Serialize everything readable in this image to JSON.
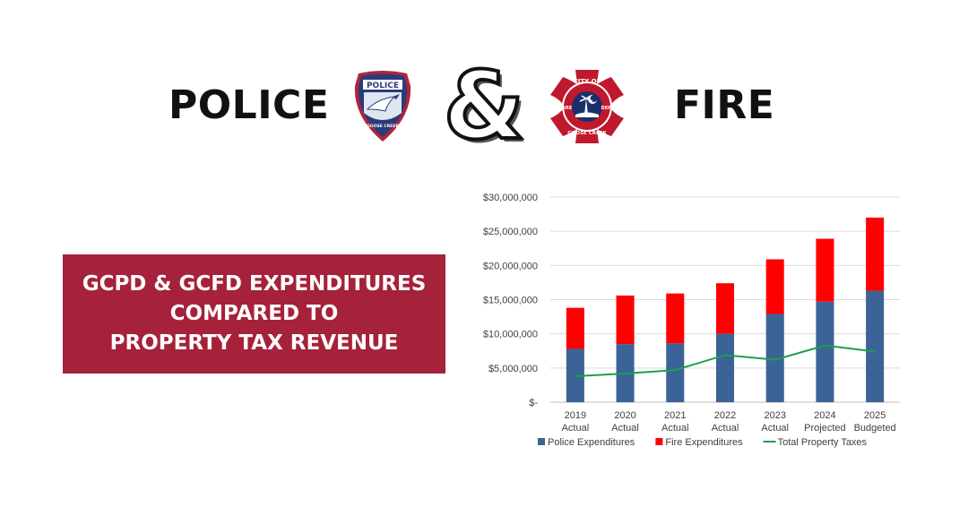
{
  "header": {
    "left_word": "POLICE",
    "right_word": "FIRE",
    "ampersand": "&",
    "police_badge": {
      "icon": "police-badge-icon",
      "top_text": "POLICE",
      "bottom_text": "GOOSE CREEK",
      "colors": {
        "body": "#2a3b7a",
        "trim": "#b0243a",
        "field": "#dfe6f2"
      }
    },
    "fire_badge": {
      "icon": "fire-department-cross-icon",
      "top_text": "CITY OF",
      "left_text": "FIRE",
      "right_text": "DEPT",
      "bottom_text": "GOOSE CREEK",
      "colors": {
        "cross": "#c0182d",
        "ring": "#ffffff",
        "center": "#1d2f6b"
      }
    }
  },
  "title_box": {
    "lines": [
      "GCPD & GCFD EXPENDITURES",
      "COMPARED TO",
      "PROPERTY TAX REVENUE"
    ],
    "background": "#a6213a"
  },
  "chart_data": {
    "type": "bar",
    "stacked": true,
    "categories": [
      [
        "2019",
        "Actual"
      ],
      [
        "2020",
        "Actual"
      ],
      [
        "2021",
        "Actual"
      ],
      [
        "2022",
        "Actual"
      ],
      [
        "2023",
        "Actual"
      ],
      [
        "2024",
        "Projected"
      ],
      [
        "2025",
        "Budgeted"
      ]
    ],
    "series": [
      {
        "name": "Police Expenditures",
        "kind": "bar",
        "color": "#3b6397",
        "values": [
          7800000,
          8500000,
          8600000,
          10000000,
          12900000,
          14700000,
          16300000
        ]
      },
      {
        "name": "Fire Expenditures",
        "kind": "bar",
        "color": "#ff0000",
        "values": [
          6000000,
          7100000,
          7300000,
          7400000,
          8000000,
          9200000,
          10700000
        ]
      },
      {
        "name": "Total Property Taxes",
        "kind": "line",
        "color": "#1aa04a",
        "values": [
          3800000,
          4200000,
          4700000,
          6900000,
          6200000,
          8300000,
          7400000
        ]
      }
    ],
    "yticks": [
      "$-",
      "$5,000,000",
      "$10,000,000",
      "$15,000,000",
      "$20,000,000",
      "$25,000,000",
      "$30,000,000"
    ],
    "ylim": [
      0,
      30000000
    ],
    "grid": true,
    "legend_position": "bottom"
  }
}
